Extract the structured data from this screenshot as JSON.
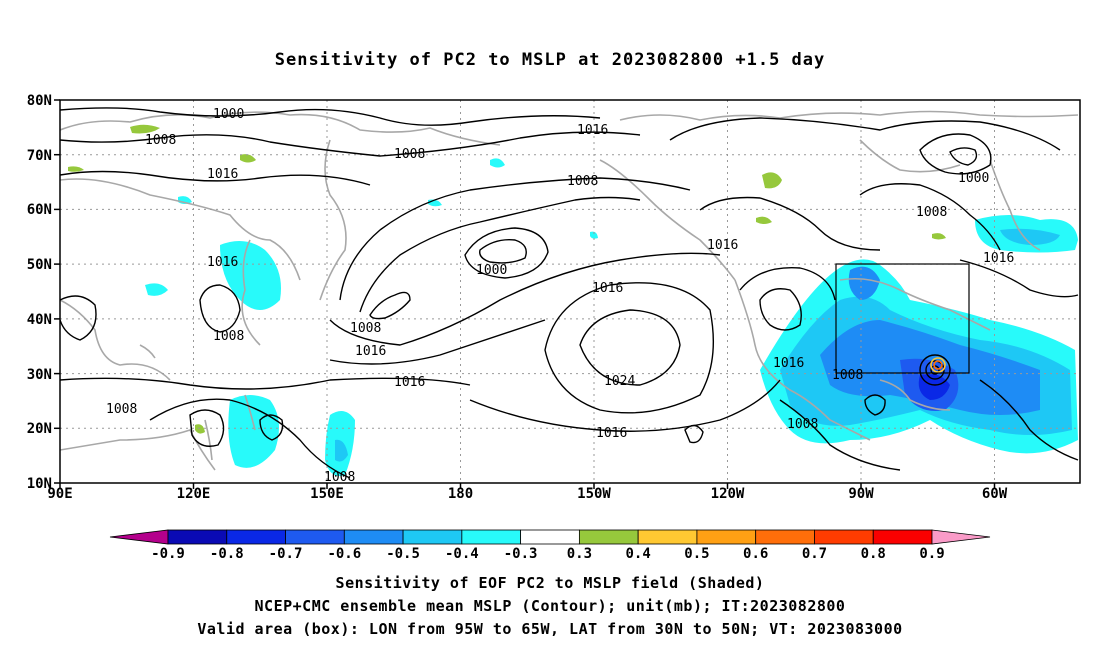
{
  "title": "Sensitivity of PC2 to MSLP at 2023082800 +1.5 day",
  "axes": {
    "lat_labels": [
      "80N",
      "70N",
      "60N",
      "50N",
      "40N",
      "30N",
      "20N",
      "10N"
    ],
    "lon_labels": [
      "90E",
      "120E",
      "150E",
      "180",
      "150W",
      "120W",
      "90W",
      "60W"
    ]
  },
  "contour_labels": [
    "1000",
    "1008",
    "1008",
    "1016",
    "1016",
    "1008",
    "1008",
    "1016",
    "1000",
    "1016",
    "1008",
    "1016",
    "1008",
    "1008",
    "1016",
    "1016",
    "1016",
    "1024",
    "1016",
    "1008",
    "1016",
    "1008",
    "1008",
    "1000",
    "1008"
  ],
  "colorbar": {
    "labels": [
      "-0.9",
      "-0.8",
      "-0.7",
      "-0.6",
      "-0.5",
      "-0.4",
      "-0.3",
      "0.3",
      "0.4",
      "0.5",
      "0.6",
      "0.7",
      "0.8",
      "0.9"
    ],
    "colors": [
      "#b4008c",
      "#0a0ab4",
      "#0a28e6",
      "#1e5af0",
      "#1e8cf5",
      "#1ec8f5",
      "#28fafa",
      "#ffffff",
      "#96c83c",
      "#ffc832",
      "#ffa014",
      "#ff6e0a",
      "#ff3c00",
      "#fa0000",
      "#fa9bc8"
    ]
  },
  "captions": [
    "Sensitivity of EOF PC2 to MSLP field (Shaded)",
    "NCEP+CMC ensemble mean MSLP (Contour); unit(mb); IT:2023082800",
    "Valid area (box): LON from 95W to 65W, LAT from 30N to 50N; VT: 2023083000"
  ]
}
